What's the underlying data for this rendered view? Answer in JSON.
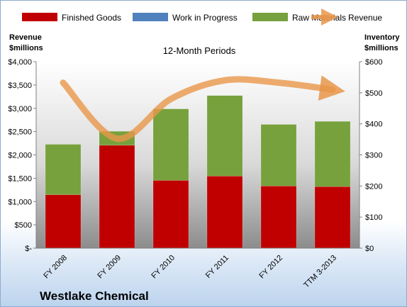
{
  "chart_data": {
    "type": "bar",
    "stacked": true,
    "title": "12-Month Periods",
    "company": "Westlake Chemical",
    "categories": [
      "FY 2008",
      "FY 2009",
      "FY 2010",
      "FY 2011",
      "FY 2012",
      "TTM 3-2013"
    ],
    "series": [
      {
        "name": "Finished Goods",
        "axis": "right",
        "color": "#c00000",
        "values": [
          172,
          331,
          218,
          232,
          200,
          198
        ]
      },
      {
        "name": "Work in Progress",
        "axis": "right",
        "color": "#4f81bd",
        "values": [
          0,
          0,
          0,
          0,
          0,
          0
        ]
      },
      {
        "name": "Raw Materials",
        "axis": "right",
        "color": "#77a13c",
        "values": [
          162,
          45,
          230,
          259,
          198,
          210
        ]
      },
      {
        "name": "Revenue",
        "axis": "left",
        "type": "line",
        "color": "#e8974a",
        "values": [
          3550,
          2350,
          3200,
          3600,
          3550,
          3400
        ]
      }
    ],
    "ylabel_left": "Revenue\n$millions",
    "ylabel_right": "Inventory\n$millions",
    "ylim_left": [
      0,
      4000
    ],
    "ylim_right": [
      0,
      600
    ],
    "yticks_left": [
      "$-",
      "$500",
      "$1,000",
      "$1,500",
      "$2,000",
      "$2,500",
      "$3,000",
      "$3,500",
      "$4,000"
    ],
    "yticks_right": [
      "$0",
      "$100",
      "$200",
      "$300",
      "$400",
      "$500",
      "$600"
    ],
    "legend_position": "top",
    "grid": false
  }
}
